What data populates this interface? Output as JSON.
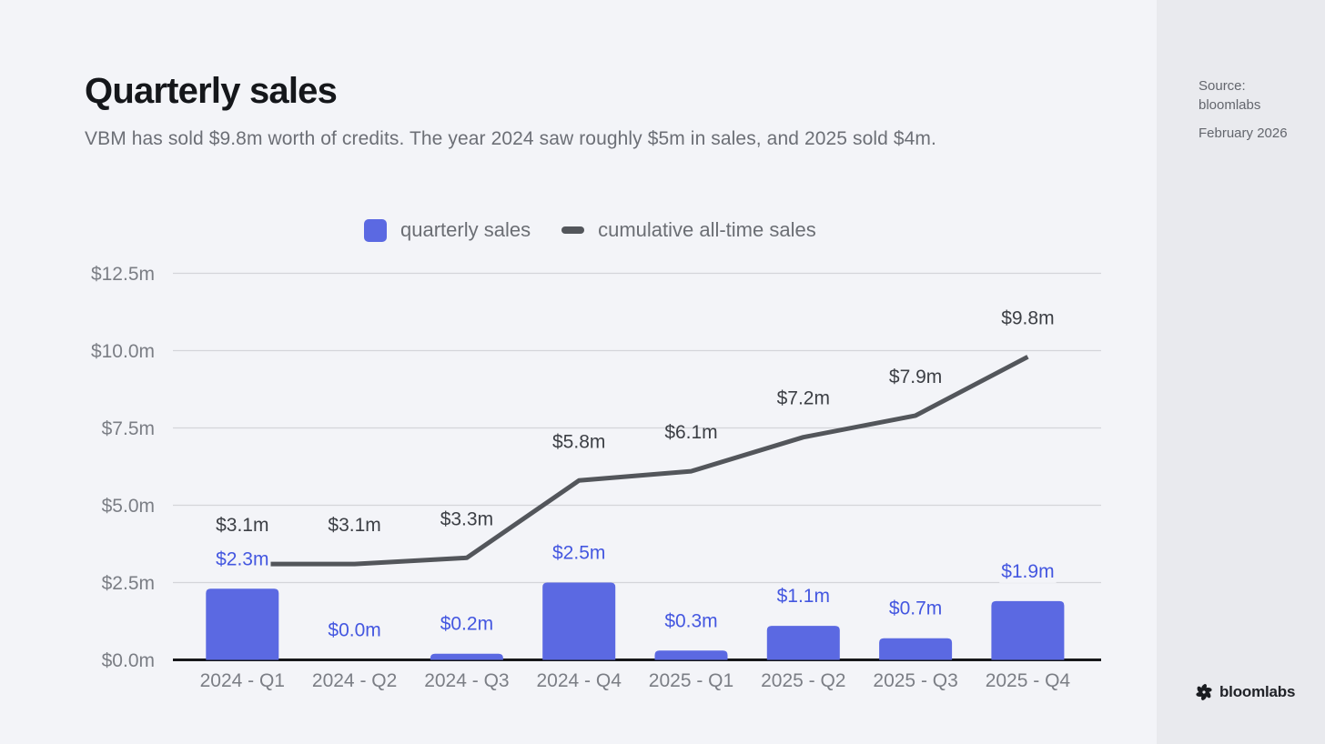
{
  "header": {
    "title": "Quarterly sales",
    "subtitle": "VBM has sold $9.8m worth of credits. The year 2024 saw roughly $5m in sales, and 2025 sold $4m."
  },
  "sidebar": {
    "source_label": "Source:",
    "source_name": "bloomlabs",
    "date": "February 2026",
    "brand": "bloomlabs"
  },
  "chart_data": {
    "type": "bar",
    "subtype": "bar-with-cumulative-line",
    "title": "Quarterly sales",
    "categories": [
      "2024 - Q1",
      "2024 - Q2",
      "2024 - Q3",
      "2024 - Q4",
      "2025 - Q1",
      "2025 - Q2",
      "2025 - Q3",
      "2025 - Q4"
    ],
    "series": [
      {
        "name": "quarterly sales",
        "type": "bar",
        "values": [
          2.3,
          0.0,
          0.2,
          2.5,
          0.3,
          1.1,
          0.7,
          1.9
        ],
        "labels": [
          "$2.3m",
          "$0.0m",
          "$0.2m",
          "$2.5m",
          "$0.3m",
          "$1.1m",
          "$0.7m",
          "$1.9m"
        ],
        "color": "#5b69e2",
        "label_color": "#4457e0"
      },
      {
        "name": "cumulative all-time sales",
        "type": "line",
        "values": [
          3.1,
          3.1,
          3.3,
          5.8,
          6.1,
          7.2,
          7.9,
          9.8
        ],
        "labels": [
          "$3.1m",
          "$3.1m",
          "$3.3m",
          "$5.8m",
          "$6.1m",
          "$7.2m",
          "$7.9m",
          "$9.8m"
        ],
        "color": "#53565b",
        "label_color": "#3c3f45"
      }
    ],
    "yticks": {
      "values": [
        0,
        2.5,
        5,
        7.5,
        10,
        12.5
      ],
      "labels": [
        "$0.0m",
        "$2.5m",
        "$5.0m",
        "$7.5m",
        "$10.0m",
        "$12.5m"
      ]
    },
    "ylim": [
      0,
      12.5
    ],
    "xlabel": "",
    "ylabel": "",
    "grid": "horizontal",
    "legend_position": "top-center",
    "colors": {
      "gridline": "#d4d5da",
      "axis": "#17181b",
      "tick_text": "#7b7e85",
      "background": "#f3f4f8"
    }
  }
}
